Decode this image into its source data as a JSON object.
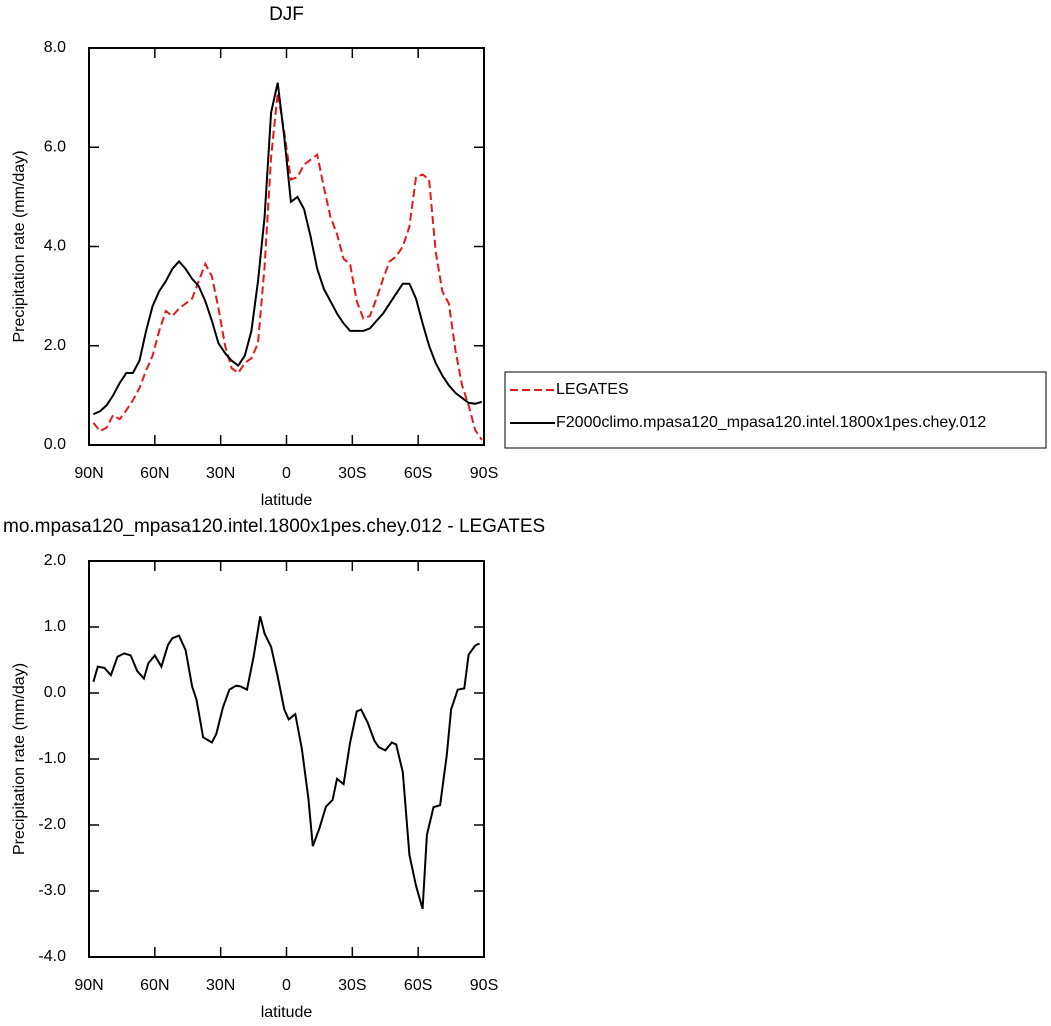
{
  "chart_data": [
    {
      "type": "line",
      "title": "DJF",
      "xlabel": "latitude",
      "ylabel": "Precipitation rate (mm/day)",
      "x": [
        88,
        85,
        82,
        79,
        76,
        73,
        70,
        67,
        64,
        61,
        58,
        55,
        52,
        49,
        46,
        43,
        40,
        37,
        34,
        31,
        28,
        25,
        22,
        19,
        16,
        13,
        10,
        7,
        4,
        1,
        -2,
        -5,
        -8,
        -11,
        -14,
        -17,
        -20,
        -23,
        -26,
        -29,
        -32,
        -35,
        -38,
        -41,
        -44,
        -47,
        -50,
        -53,
        -56,
        -59,
        -62,
        -65,
        -68,
        -71,
        -74,
        -77,
        -80,
        -83,
        -86,
        -89
      ],
      "series": [
        {
          "name": "LEGATES",
          "color": "#e8171a",
          "linestyle": "dashed",
          "values": [
            0.45,
            0.28,
            0.35,
            0.6,
            0.52,
            0.7,
            0.9,
            1.15,
            1.5,
            1.8,
            2.3,
            2.7,
            2.6,
            2.75,
            2.85,
            2.95,
            3.3,
            3.65,
            3.4,
            2.75,
            2.0,
            1.55,
            1.45,
            1.65,
            1.75,
            2.05,
            3.6,
            5.8,
            7.1,
            6.3,
            5.35,
            5.4,
            5.65,
            5.75,
            5.85,
            5.2,
            4.6,
            4.25,
            3.75,
            3.65,
            2.9,
            2.55,
            2.6,
            2.95,
            3.35,
            3.7,
            3.8,
            4.0,
            4.4,
            5.4,
            5.45,
            5.35,
            3.9,
            3.1,
            2.85,
            1.9,
            1.2,
            0.8,
            0.3,
            0.1
          ]
        },
        {
          "name": "F2000climo.mpasa120_mpasa120.intel.1800x1pes.chey.012",
          "color": "#000000",
          "linestyle": "solid",
          "values": [
            0.62,
            0.68,
            0.8,
            1.0,
            1.25,
            1.45,
            1.45,
            1.7,
            2.3,
            2.8,
            3.1,
            3.3,
            3.55,
            3.7,
            3.55,
            3.35,
            3.2,
            2.9,
            2.5,
            2.05,
            1.85,
            1.7,
            1.6,
            1.8,
            2.3,
            3.3,
            4.6,
            6.7,
            7.3,
            6.2,
            4.9,
            5.0,
            4.75,
            4.2,
            3.55,
            3.15,
            2.9,
            2.65,
            2.45,
            2.3,
            2.3,
            2.3,
            2.35,
            2.5,
            2.65,
            2.85,
            3.05,
            3.25,
            3.25,
            2.95,
            2.45,
            2.0,
            1.65,
            1.4,
            1.2,
            1.05,
            0.95,
            0.85,
            0.83,
            0.87
          ]
        }
      ],
      "xlim": [
        90,
        -90
      ],
      "xticks": [
        {
          "value": 90,
          "label": "90N"
        },
        {
          "value": 60,
          "label": "60N"
        },
        {
          "value": 30,
          "label": "30N"
        },
        0,
        {
          "value": -30,
          "label": "30S"
        },
        {
          "value": -60,
          "label": "60S"
        },
        {
          "value": -90,
          "label": "90S"
        }
      ],
      "ylim": [
        0,
        8
      ],
      "yticks": [
        {
          "value": 0,
          "label": "0.0"
        },
        {
          "value": 2,
          "label": "2.0"
        },
        {
          "value": 4,
          "label": "4.0"
        },
        {
          "value": 6,
          "label": "6.0"
        },
        {
          "value": 8,
          "label": "8.0"
        }
      ],
      "legend": "outside-right"
    },
    {
      "type": "line",
      "title": "mo.mpasa120_mpasa120.intel.1800x1pes.chey.012 - LEGATES",
      "xlabel": "latitude",
      "ylabel": "Precipitation rate (mm/day)",
      "x": [
        88,
        86,
        83,
        80,
        77,
        74,
        71,
        68,
        65,
        63,
        60,
        57,
        54,
        52,
        49,
        46,
        43,
        41,
        38,
        34,
        32,
        29,
        26,
        23,
        21,
        18,
        15,
        12,
        10,
        7,
        4,
        1,
        -1,
        -4,
        -7,
        -10,
        -12,
        -15,
        -18,
        -21,
        -23,
        -26,
        -29,
        -32,
        -34,
        -37,
        -40,
        -42,
        -45,
        -48,
        -50,
        -53,
        -56,
        -59,
        -62,
        -64,
        -67,
        -70,
        -73,
        -75,
        -78,
        -81,
        -83,
        -86,
        -88
      ],
      "series": [
        {
          "color": "#000000",
          "linestyle": "solid",
          "values": [
            0.17,
            0.4,
            0.38,
            0.27,
            0.55,
            0.6,
            0.57,
            0.33,
            0.22,
            0.45,
            0.57,
            0.4,
            0.73,
            0.83,
            0.87,
            0.65,
            0.1,
            -0.1,
            -0.67,
            -0.75,
            -0.62,
            -0.22,
            0.05,
            0.11,
            0.1,
            0.05,
            0.55,
            1.16,
            0.9,
            0.7,
            0.25,
            -0.25,
            -0.4,
            -0.32,
            -0.85,
            -1.6,
            -2.32,
            -2.05,
            -1.72,
            -1.62,
            -1.3,
            -1.38,
            -0.75,
            -0.28,
            -0.25,
            -0.45,
            -0.72,
            -0.82,
            -0.87,
            -0.75,
            -0.78,
            -1.2,
            -2.45,
            -2.92,
            -3.27,
            -2.15,
            -1.73,
            -1.7,
            -0.95,
            -0.25,
            0.05,
            0.07,
            0.58,
            0.72,
            0.75
          ]
        }
      ],
      "xlim": [
        90,
        -90
      ],
      "xticks": [
        {
          "value": 90,
          "label": "90N"
        },
        {
          "value": 60,
          "label": "60N"
        },
        {
          "value": 30,
          "label": "30N"
        },
        0,
        {
          "value": -30,
          "label": "30S"
        },
        {
          "value": -60,
          "label": "60S"
        },
        {
          "value": -90,
          "label": "90S"
        }
      ],
      "ylim": [
        -4,
        2
      ],
      "yticks": [
        {
          "value": -4,
          "label": "-4.0"
        },
        {
          "value": -3,
          "label": "-3.0"
        },
        {
          "value": -2,
          "label": "-2.0"
        },
        {
          "value": -1,
          "label": "-1.0"
        },
        {
          "value": 0,
          "label": "0.0"
        },
        {
          "value": 1,
          "label": "1.0"
        },
        {
          "value": 2,
          "label": "2.0"
        }
      ]
    }
  ]
}
